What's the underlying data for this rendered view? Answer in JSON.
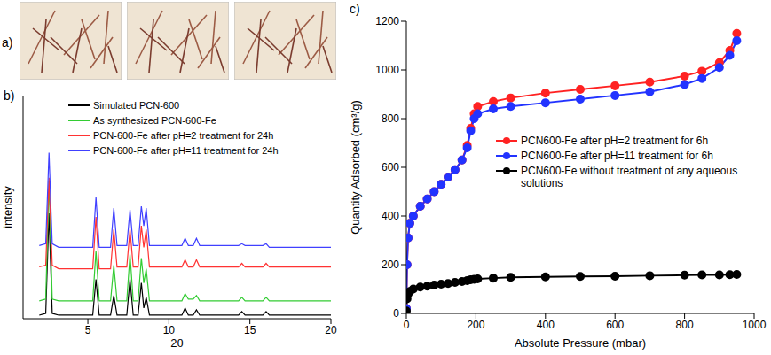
{
  "image_panel": {
    "panel": "a)",
    "photos": 3
  },
  "chart_data": [
    {
      "panel": "b)",
      "type": "line",
      "x_label": "2θ",
      "y_label": "intensity",
      "x": [
        2.0,
        2.4,
        2.6,
        2.8,
        3.2,
        5.3,
        5.5,
        5.7,
        6.4,
        6.6,
        6.8,
        7.4,
        7.6,
        7.8,
        8.1,
        8.3,
        8.45,
        8.6,
        8.8,
        10.8,
        11.0,
        11.2,
        11.5,
        11.7,
        11.9,
        14.3,
        14.5,
        14.7,
        15.8,
        16.0,
        16.2,
        20.0
      ],
      "xlim": [
        1,
        20
      ],
      "xticks": [
        5,
        10,
        15,
        20
      ],
      "ylim": [
        0,
        125
      ],
      "tick_labels": "x",
      "grid": false,
      "legend": "upper left",
      "series": [
        {
          "name": "Simulated PCN-600",
          "color": "#000000",
          "values": [
            2,
            3,
            59,
            3,
            2,
            2,
            22,
            2,
            2,
            13,
            2,
            2,
            22,
            2,
            2,
            20,
            6,
            12,
            2,
            2,
            6,
            2,
            2,
            5,
            2,
            2,
            4,
            2,
            2,
            4,
            2,
            2
          ]
        },
        {
          "name": "As synthesized PCN-600-Fe",
          "color": "#33cc33",
          "values": [
            10,
            11,
            77,
            11,
            10,
            10,
            38,
            10,
            10,
            30,
            10,
            10,
            36,
            10,
            10,
            34,
            20,
            28,
            10,
            10,
            14,
            11,
            11,
            13,
            10,
            10,
            12,
            10,
            10,
            12,
            10,
            10
          ]
        },
        {
          "name": "PCN-600-Fe after pH=2  treatment for 24h",
          "color": "#ff3333",
          "values": [
            29,
            30,
            79,
            30,
            28,
            28,
            57,
            28,
            28,
            50,
            29,
            29,
            50,
            29,
            29,
            52,
            40,
            50,
            29,
            29,
            33,
            29,
            29,
            33,
            29,
            29,
            31,
            29,
            29,
            31,
            29,
            29
          ]
        },
        {
          "name": "PCN-600-Fe after pH=11 treatment for 24h",
          "color": "#4040ff",
          "values": [
            41,
            42,
            93,
            42,
            40,
            40,
            68,
            40,
            40,
            62,
            41,
            41,
            61,
            41,
            41,
            63,
            52,
            62,
            41,
            41,
            45,
            41,
            41,
            45,
            41,
            41,
            42,
            41,
            41,
            42,
            40,
            40
          ]
        }
      ]
    },
    {
      "panel": "c)",
      "type": "line",
      "x_label": "Absolute Pressure (mbar)",
      "y_label": "Quantity Adsorbed (cm³/g)",
      "x": [
        0,
        2,
        5,
        10,
        20,
        40,
        60,
        80,
        100,
        120,
        140,
        160,
        175,
        185,
        195,
        205,
        250,
        300,
        400,
        500,
        600,
        700,
        800,
        850,
        900,
        930,
        950
      ],
      "xlim": [
        0,
        1000
      ],
      "xticks": [
        0,
        200,
        400,
        600,
        800,
        1000
      ],
      "ylim": [
        0,
        1200
      ],
      "yticks": [
        0,
        200,
        400,
        600,
        800,
        1000,
        1200
      ],
      "grid": false,
      "legend": "center right",
      "series": [
        {
          "name": "PCN600-Fe after pH=2 treatment for 6h",
          "color": "#ff2222",
          "marker": "circle",
          "values": [
            20,
            200,
            310,
            370,
            400,
            440,
            470,
            500,
            530,
            560,
            590,
            630,
            690,
            760,
            820,
            850,
            870,
            885,
            905,
            920,
            935,
            950,
            975,
            995,
            1030,
            1080,
            1150
          ]
        },
        {
          "name": "PCN600-Fe after pH=11 treatment for 6h",
          "color": "#2233ff",
          "marker": "circle",
          "values": [
            20,
            200,
            310,
            370,
            400,
            440,
            470,
            500,
            530,
            560,
            590,
            630,
            680,
            750,
            800,
            820,
            840,
            850,
            865,
            880,
            895,
            910,
            940,
            965,
            1010,
            1060,
            1120
          ]
        },
        {
          "name": "PCN600-Fe without treatment of any aqueous solutions",
          "color": "#000000",
          "marker": "circle",
          "values": [
            10,
            60,
            80,
            90,
            100,
            108,
            112,
            116,
            120,
            123,
            127,
            131,
            135,
            138,
            140,
            142,
            145,
            148,
            150,
            152,
            153,
            155,
            157,
            158,
            158,
            159,
            160
          ]
        }
      ]
    }
  ]
}
